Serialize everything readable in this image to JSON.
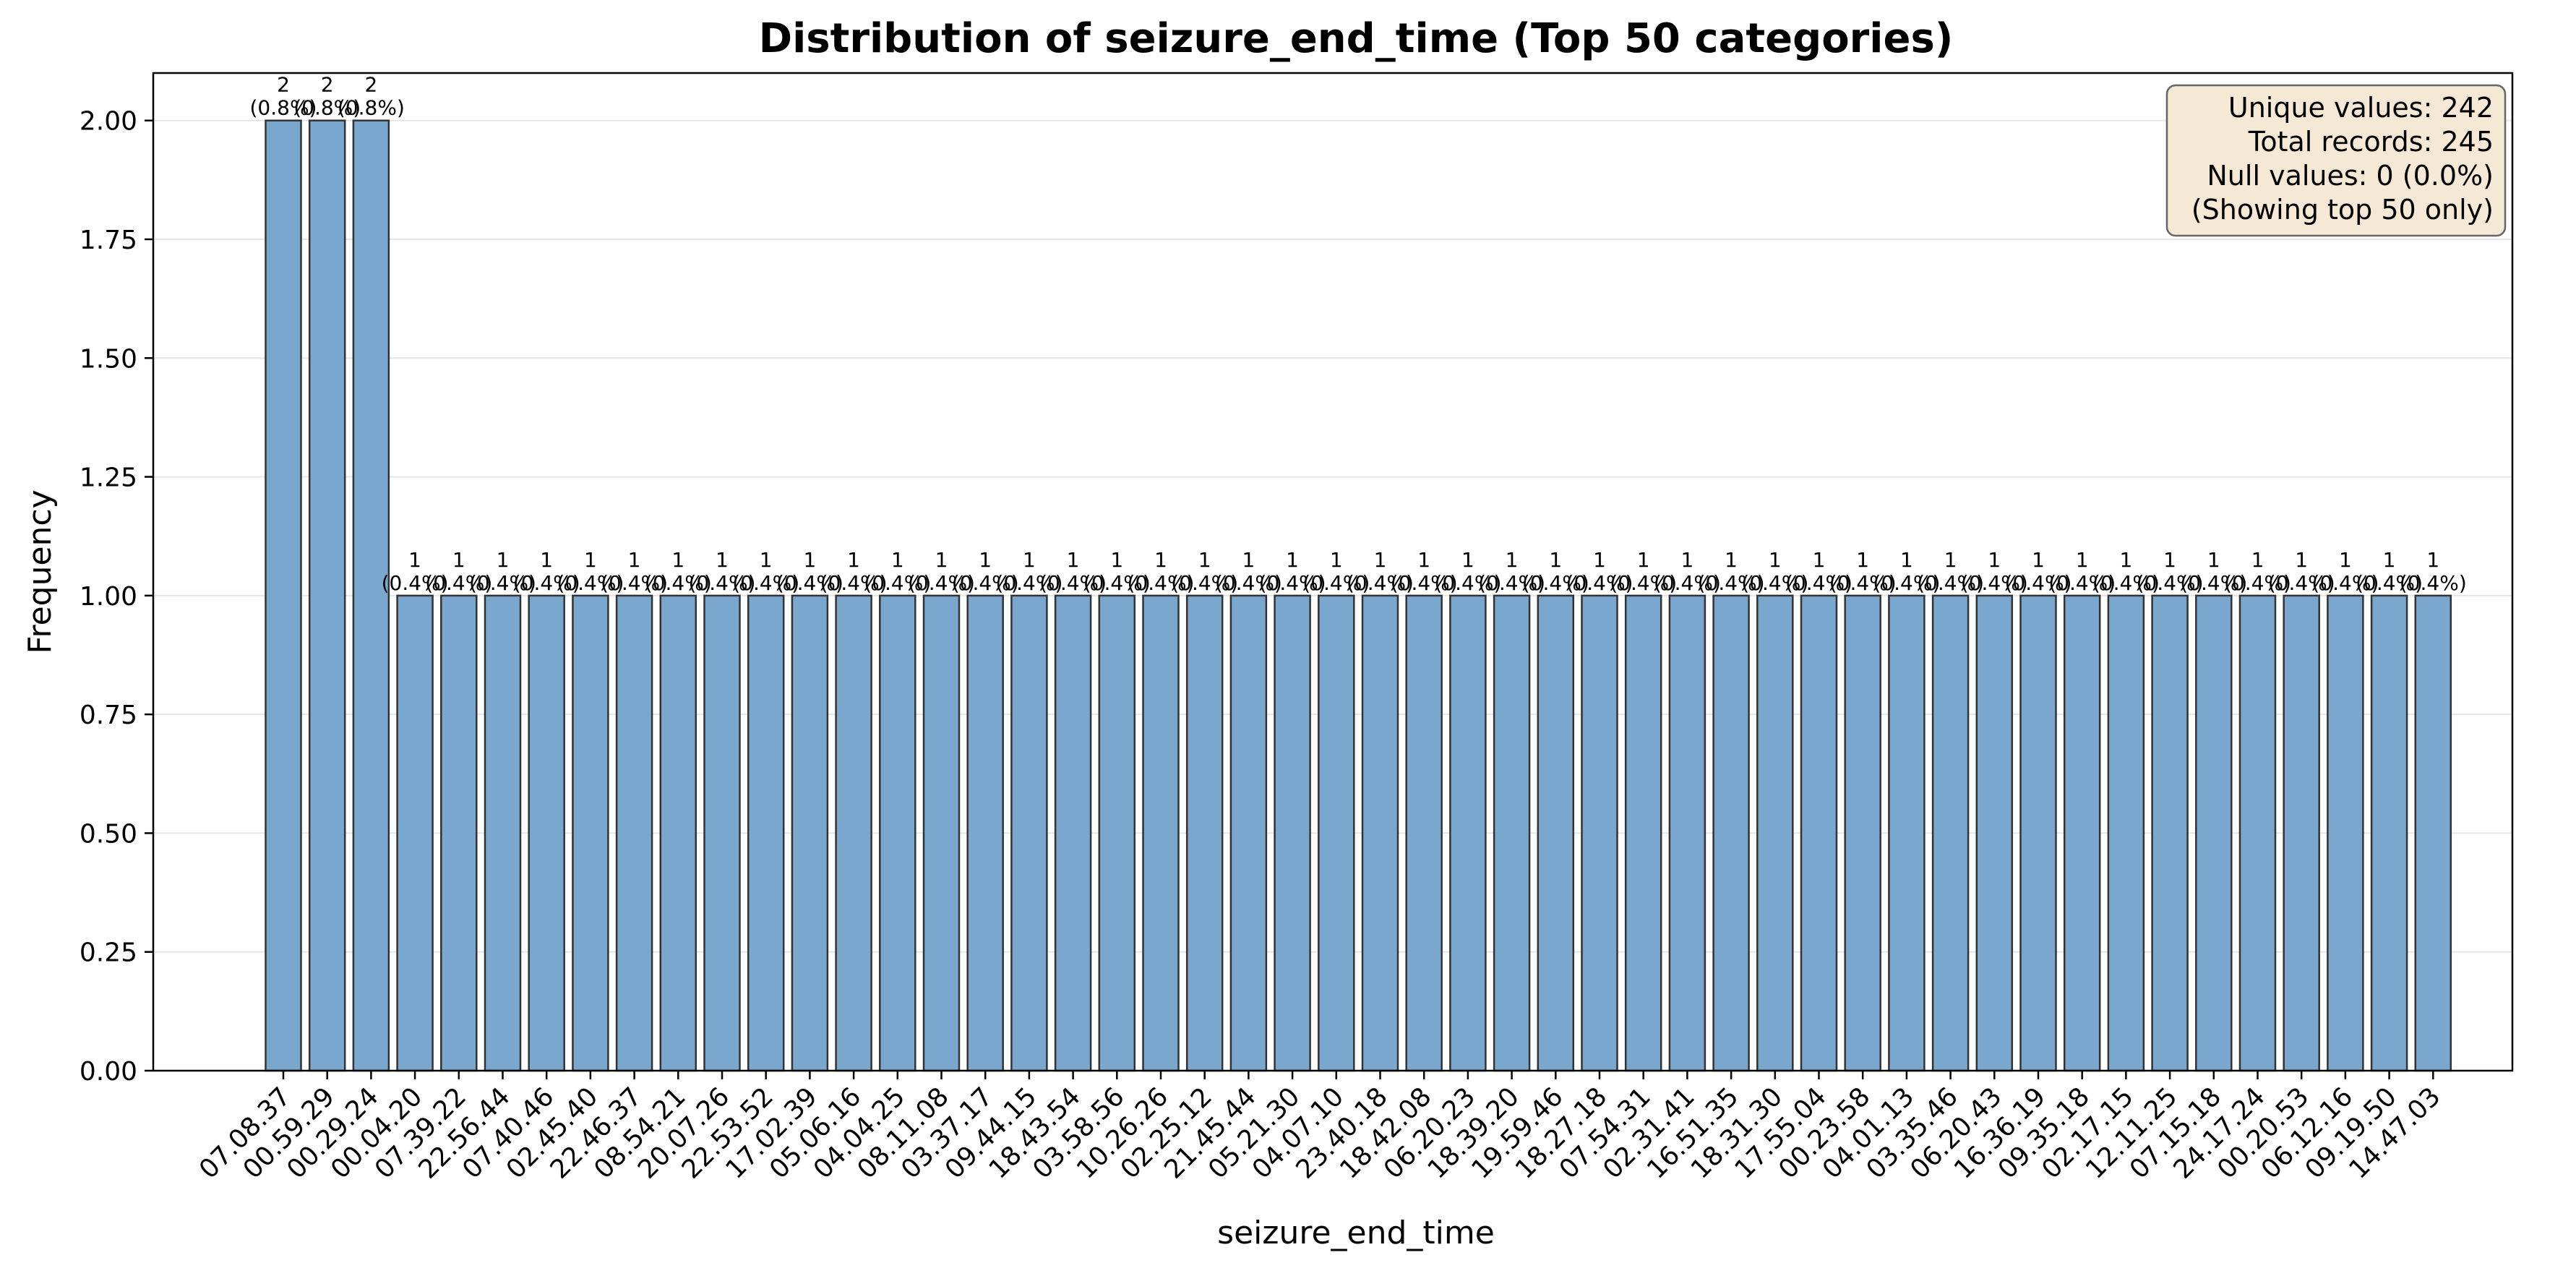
{
  "chart_data": {
    "type": "bar",
    "title": "Distribution of seizure_end_time (Top 50 categories)",
    "xlabel": "seizure_end_time",
    "ylabel": "Frequency",
    "ylim": [
      0,
      2.1
    ],
    "yticks": [
      "0.00",
      "0.25",
      "0.50",
      "0.75",
      "1.00",
      "1.25",
      "1.50",
      "1.75",
      "2.00"
    ],
    "grid": "y",
    "categories": [
      "07.08.37",
      "00.59.29",
      "00.29.24",
      "00.04.20",
      "07.39.22",
      "22.56.44",
      "07.40.46",
      "02.45.40",
      "22.46.37",
      "08.54.21",
      "20.07.26",
      "22.53.52",
      "17.02.39",
      "05.06.16",
      "04.04.25",
      "08.11.08",
      "03.37.17",
      "09.44.15",
      "18.43.54",
      "03.58.56",
      "10.26.26",
      "02.25.12",
      "21.45.44",
      "05.21.30",
      "04.07.10",
      "23.40.18",
      "18.42.08",
      "06.20.23",
      "18.39.20",
      "19.59.46",
      "18.27.18",
      "07.54.31",
      "02.31.41",
      "16.51.35",
      "18.31.30",
      "17.55.04",
      "00.23.58",
      "04.01.13",
      "03.35.46",
      "06.20.43",
      "16.36.19",
      "09.35.18",
      "02.17.15",
      "12.11.25",
      "07.15.18",
      "24.17.24",
      "00.20.53",
      "06.12.16",
      "09.19.50",
      "14.47.03"
    ],
    "values": [
      2,
      2,
      2,
      1,
      1,
      1,
      1,
      1,
      1,
      1,
      1,
      1,
      1,
      1,
      1,
      1,
      1,
      1,
      1,
      1,
      1,
      1,
      1,
      1,
      1,
      1,
      1,
      1,
      1,
      1,
      1,
      1,
      1,
      1,
      1,
      1,
      1,
      1,
      1,
      1,
      1,
      1,
      1,
      1,
      1,
      1,
      1,
      1,
      1,
      1
    ],
    "percentages": [
      "0.8%",
      "0.8%",
      "0.8%",
      "0.4%",
      "0.4%",
      "0.4%",
      "0.4%",
      "0.4%",
      "0.4%",
      "0.4%",
      "0.4%",
      "0.4%",
      "0.4%",
      "0.4%",
      "0.4%",
      "0.4%",
      "0.4%",
      "0.4%",
      "0.4%",
      "0.4%",
      "0.4%",
      "0.4%",
      "0.4%",
      "0.4%",
      "0.4%",
      "0.4%",
      "0.4%",
      "0.4%",
      "0.4%",
      "0.4%",
      "0.4%",
      "0.4%",
      "0.4%",
      "0.4%",
      "0.4%",
      "0.4%",
      "0.4%",
      "0.4%",
      "0.4%",
      "0.4%",
      "0.4%",
      "0.4%",
      "0.4%",
      "0.4%",
      "0.4%",
      "0.4%",
      "0.4%",
      "0.4%",
      "0.4%",
      "0.4%"
    ],
    "bar_color": "#7aa7cd",
    "bar_edge_color": "#333333",
    "stats_box": {
      "lines": [
        "Unique values: 242",
        "Total records: 245",
        "Null values: 0 (0.0%)",
        "(Showing top 50 only)"
      ],
      "placement": "top-right",
      "background": "#f5e9d5"
    }
  }
}
